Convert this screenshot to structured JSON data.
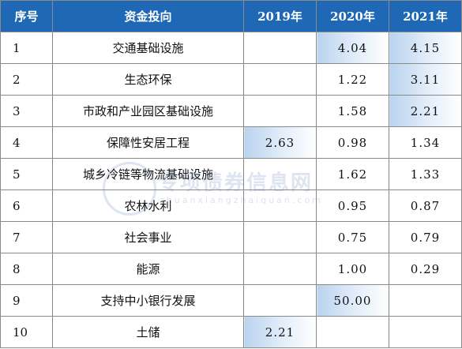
{
  "table": {
    "headers": [
      "序号",
      "资金投向",
      "2019年",
      "2020年",
      "2021年"
    ],
    "rows": [
      {
        "idx": "1",
        "name": "交通基础设施",
        "y2019": "",
        "y2020": "4.04",
        "y2021": "4.15"
      },
      {
        "idx": "2",
        "name": "生态环保",
        "y2019": "",
        "y2020": "1.22",
        "y2021": "3.11"
      },
      {
        "idx": "3",
        "name": "市政和产业园区基础设施",
        "y2019": "",
        "y2020": "1.58",
        "y2021": "2.21"
      },
      {
        "idx": "4",
        "name": "保障性安居工程",
        "y2019": "2.63",
        "y2020": "0.98",
        "y2021": "1.34"
      },
      {
        "idx": "5",
        "name": "城乡冷链等物流基础设施",
        "y2019": "",
        "y2020": "1.62",
        "y2021": "1.33"
      },
      {
        "idx": "6",
        "name": "农林水利",
        "y2019": "",
        "y2020": "0.95",
        "y2021": "0.87"
      },
      {
        "idx": "7",
        "name": "社会事业",
        "y2019": "",
        "y2020": "0.75",
        "y2021": "0.79"
      },
      {
        "idx": "8",
        "name": "能源",
        "y2019": "",
        "y2020": "1.00",
        "y2021": "0.29"
      },
      {
        "idx": "9",
        "name": "支持中小银行发展",
        "y2019": "",
        "y2020": "50.00",
        "y2021": ""
      },
      {
        "idx": "10",
        "name": "土储",
        "y2019": "2.21",
        "y2020": "",
        "y2021": ""
      }
    ],
    "highlighted": [
      {
        "row": 0,
        "col": "y2020"
      },
      {
        "row": 0,
        "col": "y2021"
      },
      {
        "row": 1,
        "col": "y2021"
      },
      {
        "row": 2,
        "col": "y2021"
      },
      {
        "row": 3,
        "col": "y2019"
      },
      {
        "row": 8,
        "col": "y2020"
      },
      {
        "row": 9,
        "col": "y2019"
      }
    ],
    "header_color": "#1f68b5",
    "highlight_color": "#b9d3ef"
  },
  "watermark": {
    "text": "专项债券信息网",
    "subtext": "zhuanxiangzhaiquan.com"
  }
}
